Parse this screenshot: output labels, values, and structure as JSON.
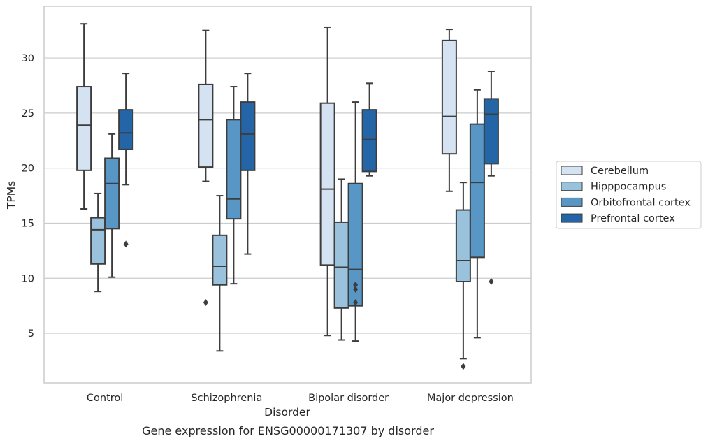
{
  "chart_data": {
    "type": "box",
    "title": "",
    "caption": "Gene expression for ENSG00000171307 by disorder",
    "xlabel": "Disorder",
    "ylabel": "TPMs",
    "ylim": [
      0.5,
      34.7
    ],
    "yticks": [
      5,
      10,
      15,
      20,
      25,
      30
    ],
    "grid": "horizontal",
    "legend_position": "right",
    "categories": [
      "Control",
      "Schizophrenia",
      "Bipolar disorder",
      "Major depression"
    ],
    "series": [
      {
        "name": "Cerebellum",
        "color": "#d4e2f2",
        "boxes": [
          {
            "whislo": 16.3,
            "q1": 19.8,
            "med": 23.9,
            "q3": 27.4,
            "whishi": 33.1,
            "fliers": []
          },
          {
            "whislo": 18.8,
            "q1": 20.1,
            "med": 24.4,
            "q3": 27.6,
            "whishi": 32.5,
            "fliers": [
              7.8
            ]
          },
          {
            "whislo": 4.8,
            "q1": 11.2,
            "med": 18.1,
            "q3": 25.9,
            "whishi": 32.8,
            "fliers": []
          },
          {
            "whislo": 17.9,
            "q1": 21.3,
            "med": 24.7,
            "q3": 31.6,
            "whishi": 32.6,
            "fliers": []
          }
        ]
      },
      {
        "name": "Hipppocampus",
        "color": "#9ac2dc",
        "boxes": [
          {
            "whislo": 8.8,
            "q1": 11.3,
            "med": 14.4,
            "q3": 15.5,
            "whishi": 17.7,
            "fliers": []
          },
          {
            "whislo": 3.4,
            "q1": 9.4,
            "med": 11.1,
            "q3": 13.9,
            "whishi": 17.5,
            "fliers": []
          },
          {
            "whislo": 4.4,
            "q1": 7.3,
            "med": 11.0,
            "q3": 15.1,
            "whishi": 19.0,
            "fliers": []
          },
          {
            "whislo": 2.7,
            "q1": 9.7,
            "med": 11.6,
            "q3": 16.2,
            "whishi": 18.7,
            "fliers": [
              2.0
            ]
          }
        ]
      },
      {
        "name": "Orbitofrontal cortex",
        "color": "#5896c6",
        "boxes": [
          {
            "whislo": 10.1,
            "q1": 14.5,
            "med": 18.6,
            "q3": 20.9,
            "whishi": 23.1,
            "fliers": []
          },
          {
            "whislo": 9.5,
            "q1": 15.4,
            "med": 17.2,
            "q3": 24.4,
            "whishi": 27.4,
            "fliers": []
          },
          {
            "whislo": 4.3,
            "q1": 7.5,
            "med": 10.8,
            "q3": 18.6,
            "whishi": 26.0,
            "fliers": [
              7.8,
              9.0,
              9.4
            ]
          },
          {
            "whislo": 4.6,
            "q1": 11.9,
            "med": 18.7,
            "q3": 24.0,
            "whishi": 27.1,
            "fliers": []
          }
        ]
      },
      {
        "name": "Prefrontal cortex",
        "color": "#2465a8",
        "boxes": [
          {
            "whislo": 18.5,
            "q1": 21.7,
            "med": 23.2,
            "q3": 25.3,
            "whishi": 28.6,
            "fliers": [
              13.1
            ]
          },
          {
            "whislo": 12.2,
            "q1": 19.8,
            "med": 23.1,
            "q3": 26.0,
            "whishi": 28.6,
            "fliers": []
          },
          {
            "whislo": 19.3,
            "q1": 19.7,
            "med": 22.6,
            "q3": 25.3,
            "whishi": 27.7,
            "fliers": []
          },
          {
            "whislo": 19.3,
            "q1": 20.4,
            "med": 24.9,
            "q3": 26.3,
            "whishi": 28.8,
            "fliers": [
              9.7
            ]
          }
        ]
      }
    ]
  }
}
